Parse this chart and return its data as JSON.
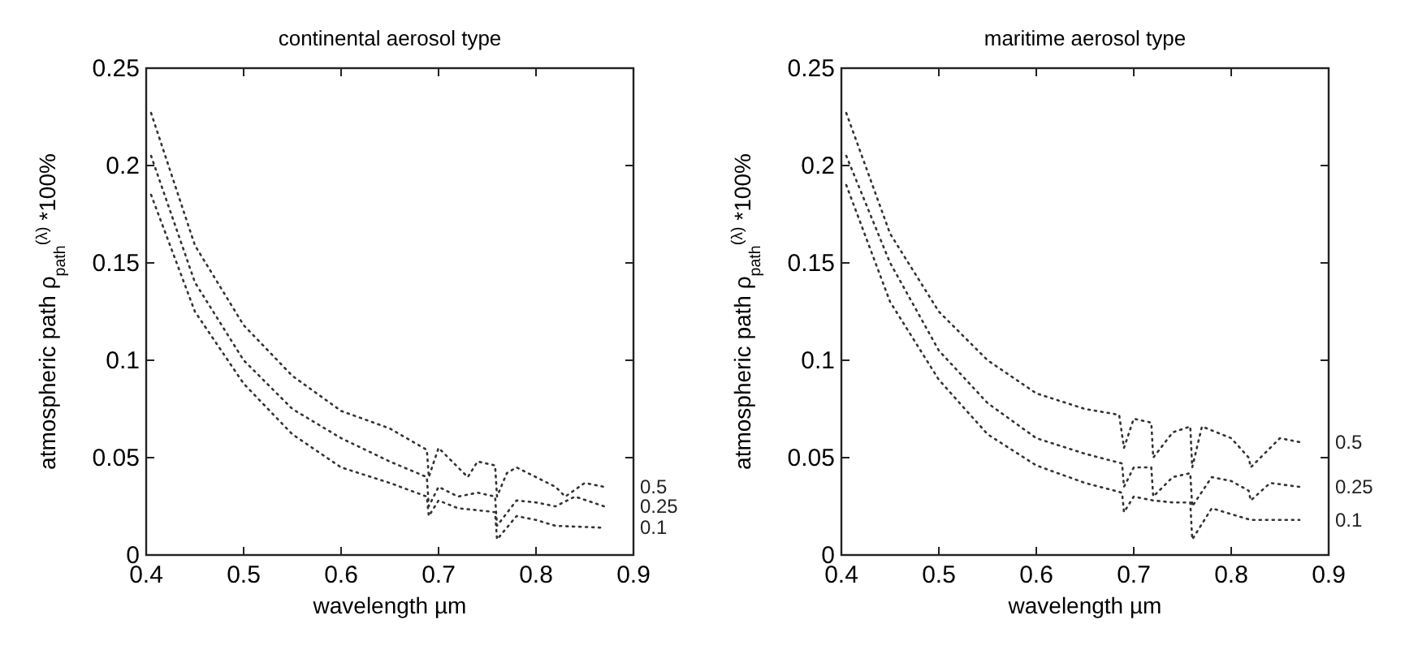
{
  "chart_data": [
    {
      "type": "line",
      "title": "continental aerosol type",
      "xlabel": "wavelength µm",
      "ylabel": "atmospheric path ρ$_{path}$$^{(λ)}$ *100%",
      "line_style": "dotted",
      "xlim": [
        0.4,
        0.9
      ],
      "ylim": [
        0,
        0.25
      ],
      "xticks": [
        0.4,
        0.5,
        0.6,
        0.7,
        0.8,
        0.9
      ],
      "yticks": [
        0,
        0.05,
        0.1,
        0.15,
        0.2,
        0.25
      ],
      "grid": false,
      "legend": false,
      "series": [
        {
          "name": "0.5",
          "color": "#333333",
          "x": [
            0.405,
            0.45,
            0.5,
            0.55,
            0.6,
            0.65,
            0.688,
            0.69,
            0.7,
            0.72,
            0.73,
            0.74,
            0.758,
            0.76,
            0.77,
            0.78,
            0.8,
            0.82,
            0.83,
            0.85,
            0.87
          ],
          "values": [
            0.227,
            0.159,
            0.118,
            0.092,
            0.074,
            0.065,
            0.054,
            0.04,
            0.055,
            0.045,
            0.04,
            0.048,
            0.046,
            0.03,
            0.042,
            0.045,
            0.04,
            0.035,
            0.03,
            0.037,
            0.035
          ]
        },
        {
          "name": "0.25",
          "color": "#333333",
          "x": [
            0.405,
            0.45,
            0.5,
            0.55,
            0.6,
            0.65,
            0.688,
            0.69,
            0.7,
            0.72,
            0.74,
            0.758,
            0.76,
            0.78,
            0.8,
            0.82,
            0.84,
            0.87
          ],
          "values": [
            0.205,
            0.14,
            0.1,
            0.075,
            0.06,
            0.048,
            0.04,
            0.025,
            0.035,
            0.03,
            0.032,
            0.03,
            0.015,
            0.028,
            0.027,
            0.025,
            0.03,
            0.025
          ]
        },
        {
          "name": "0.1",
          "color": "#333333",
          "x": [
            0.405,
            0.45,
            0.5,
            0.55,
            0.6,
            0.65,
            0.688,
            0.69,
            0.7,
            0.72,
            0.74,
            0.758,
            0.76,
            0.78,
            0.8,
            0.82,
            0.87
          ],
          "values": [
            0.185,
            0.125,
            0.088,
            0.062,
            0.045,
            0.037,
            0.03,
            0.02,
            0.028,
            0.024,
            0.023,
            0.022,
            0.008,
            0.02,
            0.018,
            0.015,
            0.014
          ]
        }
      ]
    },
    {
      "type": "line",
      "title": "maritime aerosol type",
      "xlabel": "wavelength µm",
      "ylabel": "atmospheric path ρ$_{path}$$^{(λ)}$ *100%",
      "line_style": "dotted",
      "xlim": [
        0.4,
        0.9
      ],
      "ylim": [
        0,
        0.25
      ],
      "xticks": [
        0.4,
        0.5,
        0.6,
        0.7,
        0.8,
        0.9
      ],
      "yticks": [
        0,
        0.05,
        0.1,
        0.15,
        0.2,
        0.25
      ],
      "grid": false,
      "legend": false,
      "series": [
        {
          "name": "0.5",
          "color": "#333333",
          "x": [
            0.405,
            0.45,
            0.5,
            0.55,
            0.6,
            0.65,
            0.685,
            0.69,
            0.7,
            0.718,
            0.72,
            0.74,
            0.758,
            0.76,
            0.77,
            0.8,
            0.818,
            0.82,
            0.84,
            0.85,
            0.87
          ],
          "values": [
            0.227,
            0.165,
            0.125,
            0.1,
            0.083,
            0.075,
            0.072,
            0.055,
            0.07,
            0.068,
            0.05,
            0.063,
            0.066,
            0.045,
            0.066,
            0.06,
            0.05,
            0.045,
            0.055,
            0.06,
            0.058
          ]
        },
        {
          "name": "0.25",
          "color": "#333333",
          "x": [
            0.405,
            0.45,
            0.5,
            0.55,
            0.6,
            0.65,
            0.688,
            0.69,
            0.7,
            0.718,
            0.72,
            0.74,
            0.758,
            0.76,
            0.78,
            0.8,
            0.818,
            0.82,
            0.84,
            0.87
          ],
          "values": [
            0.205,
            0.15,
            0.105,
            0.078,
            0.06,
            0.052,
            0.047,
            0.035,
            0.045,
            0.045,
            0.03,
            0.04,
            0.042,
            0.025,
            0.04,
            0.038,
            0.033,
            0.028,
            0.037,
            0.035
          ]
        },
        {
          "name": "0.1",
          "color": "#333333",
          "x": [
            0.405,
            0.45,
            0.5,
            0.55,
            0.6,
            0.65,
            0.688,
            0.69,
            0.7,
            0.72,
            0.74,
            0.758,
            0.76,
            0.78,
            0.8,
            0.82,
            0.87
          ],
          "values": [
            0.19,
            0.13,
            0.09,
            0.062,
            0.046,
            0.037,
            0.032,
            0.022,
            0.03,
            0.028,
            0.027,
            0.027,
            0.008,
            0.024,
            0.021,
            0.018,
            0.018
          ]
        }
      ]
    }
  ]
}
